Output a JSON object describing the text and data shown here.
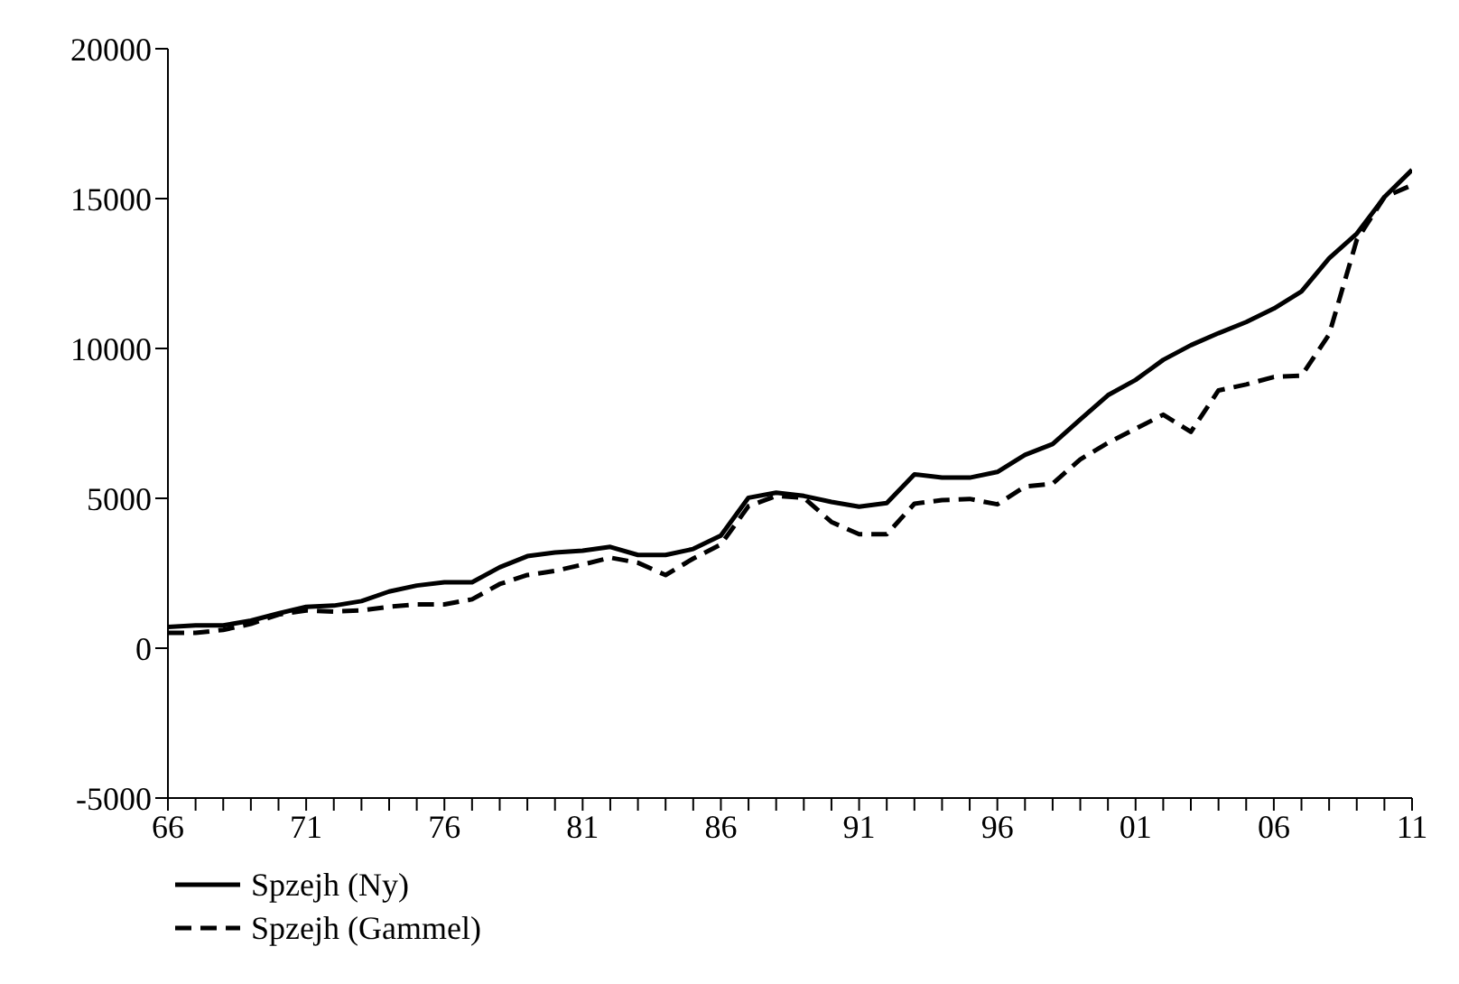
{
  "chart_data": {
    "type": "line",
    "x": [
      1966,
      1967,
      1968,
      1969,
      1970,
      1971,
      1972,
      1973,
      1974,
      1975,
      1976,
      1977,
      1978,
      1979,
      1980,
      1981,
      1982,
      1983,
      1984,
      1985,
      1986,
      1987,
      1988,
      1989,
      1990,
      1991,
      1992,
      1993,
      1994,
      1995,
      1996,
      1997,
      1998,
      1999,
      2000,
      2001,
      2002,
      2003,
      2004,
      2005,
      2006,
      2007,
      2008,
      2009,
      2010,
      2011
    ],
    "series": [
      {
        "name": "Spzejh (Ny)",
        "color": "#000000",
        "line_style": "solid",
        "values": [
          710,
          760,
          760,
          920,
          1160,
          1380,
          1420,
          1570,
          1890,
          2090,
          2200,
          2200,
          2700,
          3070,
          3190,
          3250,
          3380,
          3110,
          3110,
          3310,
          3760,
          5020,
          5190,
          5080,
          4880,
          4720,
          4840,
          5800,
          5690,
          5690,
          5880,
          6450,
          6810,
          7630,
          8440,
          8950,
          9620,
          10110,
          10510,
          10880,
          11330,
          11900,
          13010,
          13830,
          15050,
          15960
        ]
      },
      {
        "name": "Spzejh (Gammel)",
        "color": "#000000",
        "line_style": "dashed",
        "values": [
          510,
          510,
          610,
          810,
          1120,
          1260,
          1220,
          1260,
          1380,
          1460,
          1460,
          1630,
          2140,
          2440,
          2580,
          2790,
          3020,
          2850,
          2440,
          2990,
          3460,
          4740,
          5080,
          5020,
          4210,
          3800,
          3800,
          4820,
          4940,
          4980,
          4800,
          5390,
          5490,
          6300,
          6850,
          7320,
          7790,
          7220,
          8600,
          8800,
          9050,
          9090,
          10470,
          13620,
          15050,
          15450
        ]
      }
    ],
    "xlim": [
      1966,
      2011
    ],
    "xticks": [
      {
        "value": 1966,
        "label": "66"
      },
      {
        "value": 1967,
        "label": null
      },
      {
        "value": 1968,
        "label": null
      },
      {
        "value": 1969,
        "label": null
      },
      {
        "value": 1970,
        "label": null
      },
      {
        "value": 1971,
        "label": "71"
      },
      {
        "value": 1972,
        "label": null
      },
      {
        "value": 1973,
        "label": null
      },
      {
        "value": 1974,
        "label": null
      },
      {
        "value": 1975,
        "label": null
      },
      {
        "value": 1976,
        "label": "76"
      },
      {
        "value": 1977,
        "label": null
      },
      {
        "value": 1978,
        "label": null
      },
      {
        "value": 1979,
        "label": null
      },
      {
        "value": 1980,
        "label": null
      },
      {
        "value": 1981,
        "label": "81"
      },
      {
        "value": 1982,
        "label": null
      },
      {
        "value": 1983,
        "label": null
      },
      {
        "value": 1984,
        "label": null
      },
      {
        "value": 1985,
        "label": null
      },
      {
        "value": 1986,
        "label": "86"
      },
      {
        "value": 1987,
        "label": null
      },
      {
        "value": 1988,
        "label": null
      },
      {
        "value": 1989,
        "label": null
      },
      {
        "value": 1990,
        "label": null
      },
      {
        "value": 1991,
        "label": "91"
      },
      {
        "value": 1992,
        "label": null
      },
      {
        "value": 1993,
        "label": null
      },
      {
        "value": 1994,
        "label": null
      },
      {
        "value": 1995,
        "label": null
      },
      {
        "value": 1996,
        "label": "96"
      },
      {
        "value": 1997,
        "label": null
      },
      {
        "value": 1998,
        "label": null
      },
      {
        "value": 1999,
        "label": null
      },
      {
        "value": 2000,
        "label": null
      },
      {
        "value": 2001,
        "label": "01"
      },
      {
        "value": 2002,
        "label": null
      },
      {
        "value": 2003,
        "label": null
      },
      {
        "value": 2004,
        "label": null
      },
      {
        "value": 2005,
        "label": null
      },
      {
        "value": 2006,
        "label": "06"
      },
      {
        "value": 2007,
        "label": null
      },
      {
        "value": 2008,
        "label": null
      },
      {
        "value": 2009,
        "label": null
      },
      {
        "value": 2010,
        "label": null
      },
      {
        "value": 2011,
        "label": "11"
      }
    ],
    "ylim": [
      -5000,
      20000
    ],
    "yticks": [
      -5000,
      0,
      5000,
      10000,
      15000,
      20000
    ],
    "grid": false,
    "legend": "bottom left",
    "marker": "none"
  }
}
